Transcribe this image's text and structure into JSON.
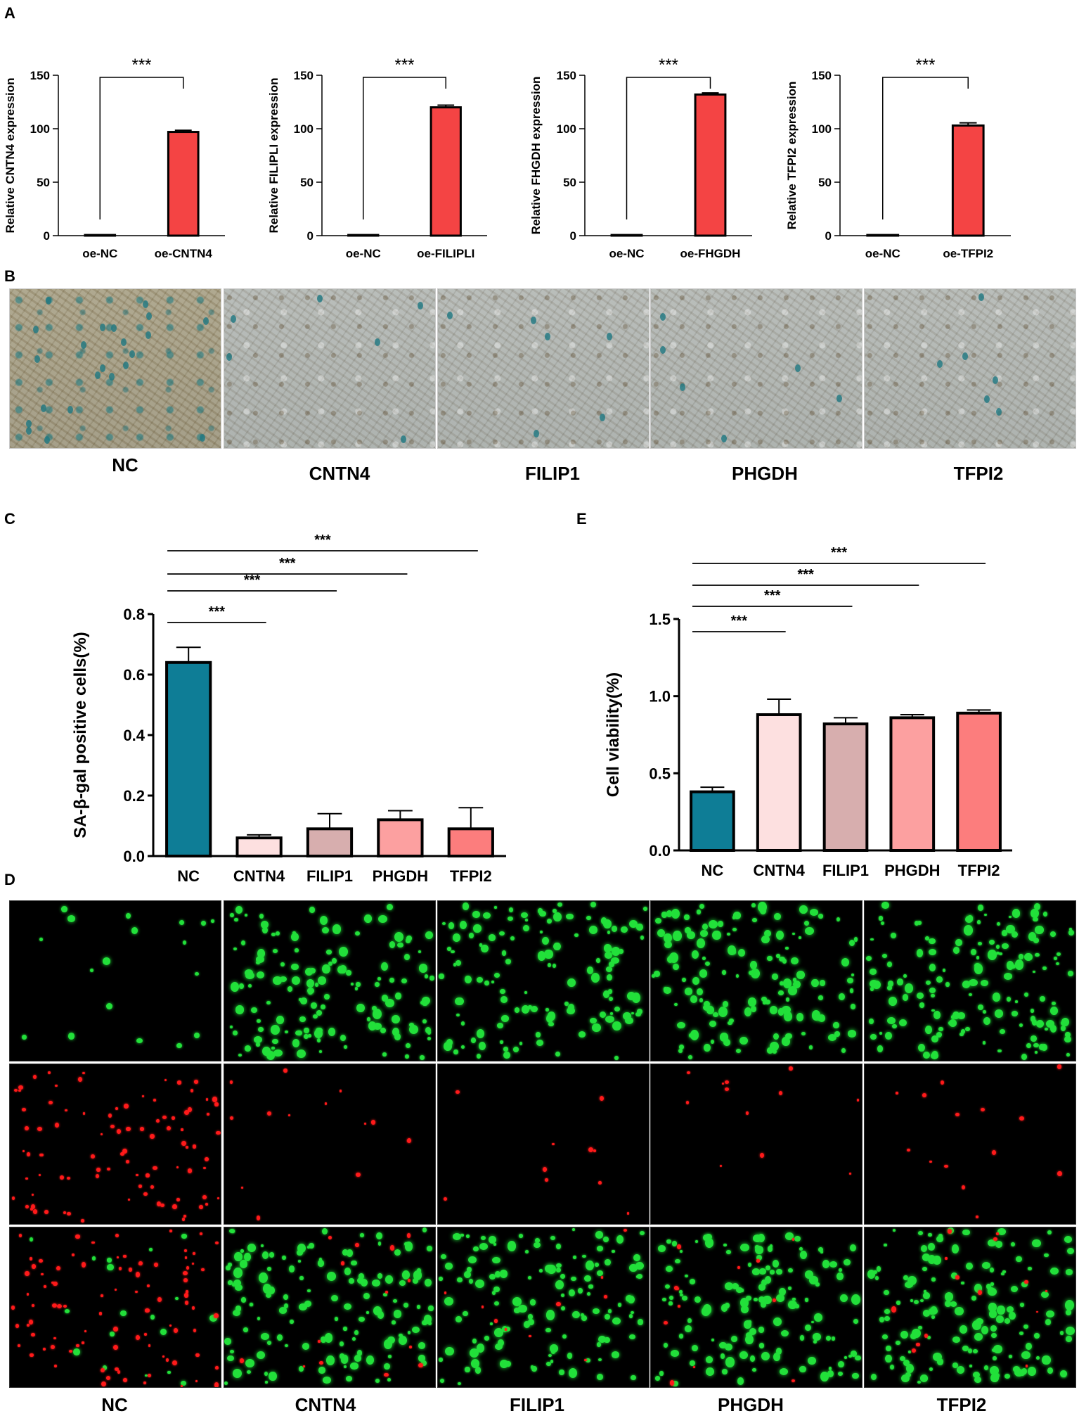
{
  "panel_letters": {
    "A": "A",
    "B": "B",
    "C": "C",
    "D": "D",
    "E": "E"
  },
  "colors": {
    "red_bar": "#f44444",
    "NC": "#0e7d96",
    "CNTN4": "#fde0e0",
    "FILIP1": "#d7aeae",
    "PHGDH": "#fca0a0",
    "TFPI2": "#fc7d7d",
    "live_stain": "#22e03a",
    "dead_stain": "#ff1a1a"
  },
  "chart_data": [
    {
      "id": "A1",
      "type": "bar",
      "categories": [
        "oe-NC",
        "oe-CNTN4"
      ],
      "values": [
        0.6,
        97
      ],
      "errors": [
        0,
        1.5
      ],
      "ylabel": "Relative CNTN4 expression",
      "ylim": [
        0,
        150
      ],
      "yticks": [
        "0",
        "50",
        "100",
        "150"
      ],
      "significance": [
        {
          "from": 0,
          "to": 1,
          "label": "***"
        }
      ]
    },
    {
      "id": "A2",
      "type": "bar",
      "categories": [
        "oe-NC",
        "oe-FILIPLI"
      ],
      "values": [
        0.6,
        120
      ],
      "errors": [
        0,
        2
      ],
      "ylabel": "Relative FILIPLI expression",
      "ylim": [
        0,
        150
      ],
      "yticks": [
        "0",
        "50",
        "100",
        "150"
      ],
      "significance": [
        {
          "from": 0,
          "to": 1,
          "label": "***"
        }
      ]
    },
    {
      "id": "A3",
      "type": "bar",
      "categories": [
        "oe-NC",
        "oe-FHGDH"
      ],
      "values": [
        0.6,
        132
      ],
      "errors": [
        0,
        1.5
      ],
      "ylabel": "Relative FHGDH expression",
      "ylim": [
        0,
        150
      ],
      "yticks": [
        "0",
        "50",
        "100",
        "150"
      ],
      "significance": [
        {
          "from": 0,
          "to": 1,
          "label": "***"
        }
      ]
    },
    {
      "id": "A4",
      "type": "bar",
      "categories": [
        "oe-NC",
        "oe-TFPI2"
      ],
      "values": [
        0.6,
        103
      ],
      "errors": [
        0,
        2.5
      ],
      "ylabel": "Relative TFPI2 expression",
      "ylim": [
        0,
        150
      ],
      "yticks": [
        "0",
        "50",
        "100",
        "150"
      ],
      "significance": [
        {
          "from": 0,
          "to": 1,
          "label": "***"
        }
      ]
    },
    {
      "id": "C",
      "type": "bar",
      "categories": [
        "NC",
        "CNTN4",
        "FILIP1",
        "PHGDH",
        "TFPI2"
      ],
      "values": [
        0.64,
        0.06,
        0.09,
        0.12,
        0.09
      ],
      "errors": [
        0.05,
        0.01,
        0.05,
        0.03,
        0.07
      ],
      "ylabel": "SA-β-gal positive cells(%)",
      "ylim": [
        0,
        0.8
      ],
      "yticks": [
        "0.0",
        "0.2",
        "0.4",
        "0.6",
        "0.8"
      ],
      "significance": [
        {
          "from": 0,
          "to": 1,
          "label": "***"
        },
        {
          "from": 0,
          "to": 2,
          "label": "***"
        },
        {
          "from": 0,
          "to": 3,
          "label": "***"
        },
        {
          "from": 0,
          "to": 4,
          "label": "***"
        }
      ]
    },
    {
      "id": "E",
      "type": "bar",
      "categories": [
        "NC",
        "CNTN4",
        "FILIP1",
        "PHGDH",
        "TFPI2"
      ],
      "values": [
        0.38,
        0.88,
        0.82,
        0.86,
        0.89
      ],
      "errors": [
        0.03,
        0.1,
        0.04,
        0.02,
        0.02
      ],
      "ylabel": "Cell viability(%)",
      "ylim": [
        0,
        1.5
      ],
      "yticks": [
        "0.0",
        "0.5",
        "1.0",
        "1.5"
      ],
      "significance": [
        {
          "from": 0,
          "to": 1,
          "label": "***"
        },
        {
          "from": 0,
          "to": 2,
          "label": "***"
        },
        {
          "from": 0,
          "to": 3,
          "label": "***"
        },
        {
          "from": 0,
          "to": 4,
          "label": "***"
        }
      ]
    }
  ],
  "panel_B_labels": [
    "NC",
    "CNTN4",
    "FILIP1",
    "PHGDH",
    "TFPI2"
  ],
  "panel_D_labels": [
    "NC",
    "CNTN4",
    "FILIP1",
    "PHGDH",
    "TFPI2"
  ]
}
